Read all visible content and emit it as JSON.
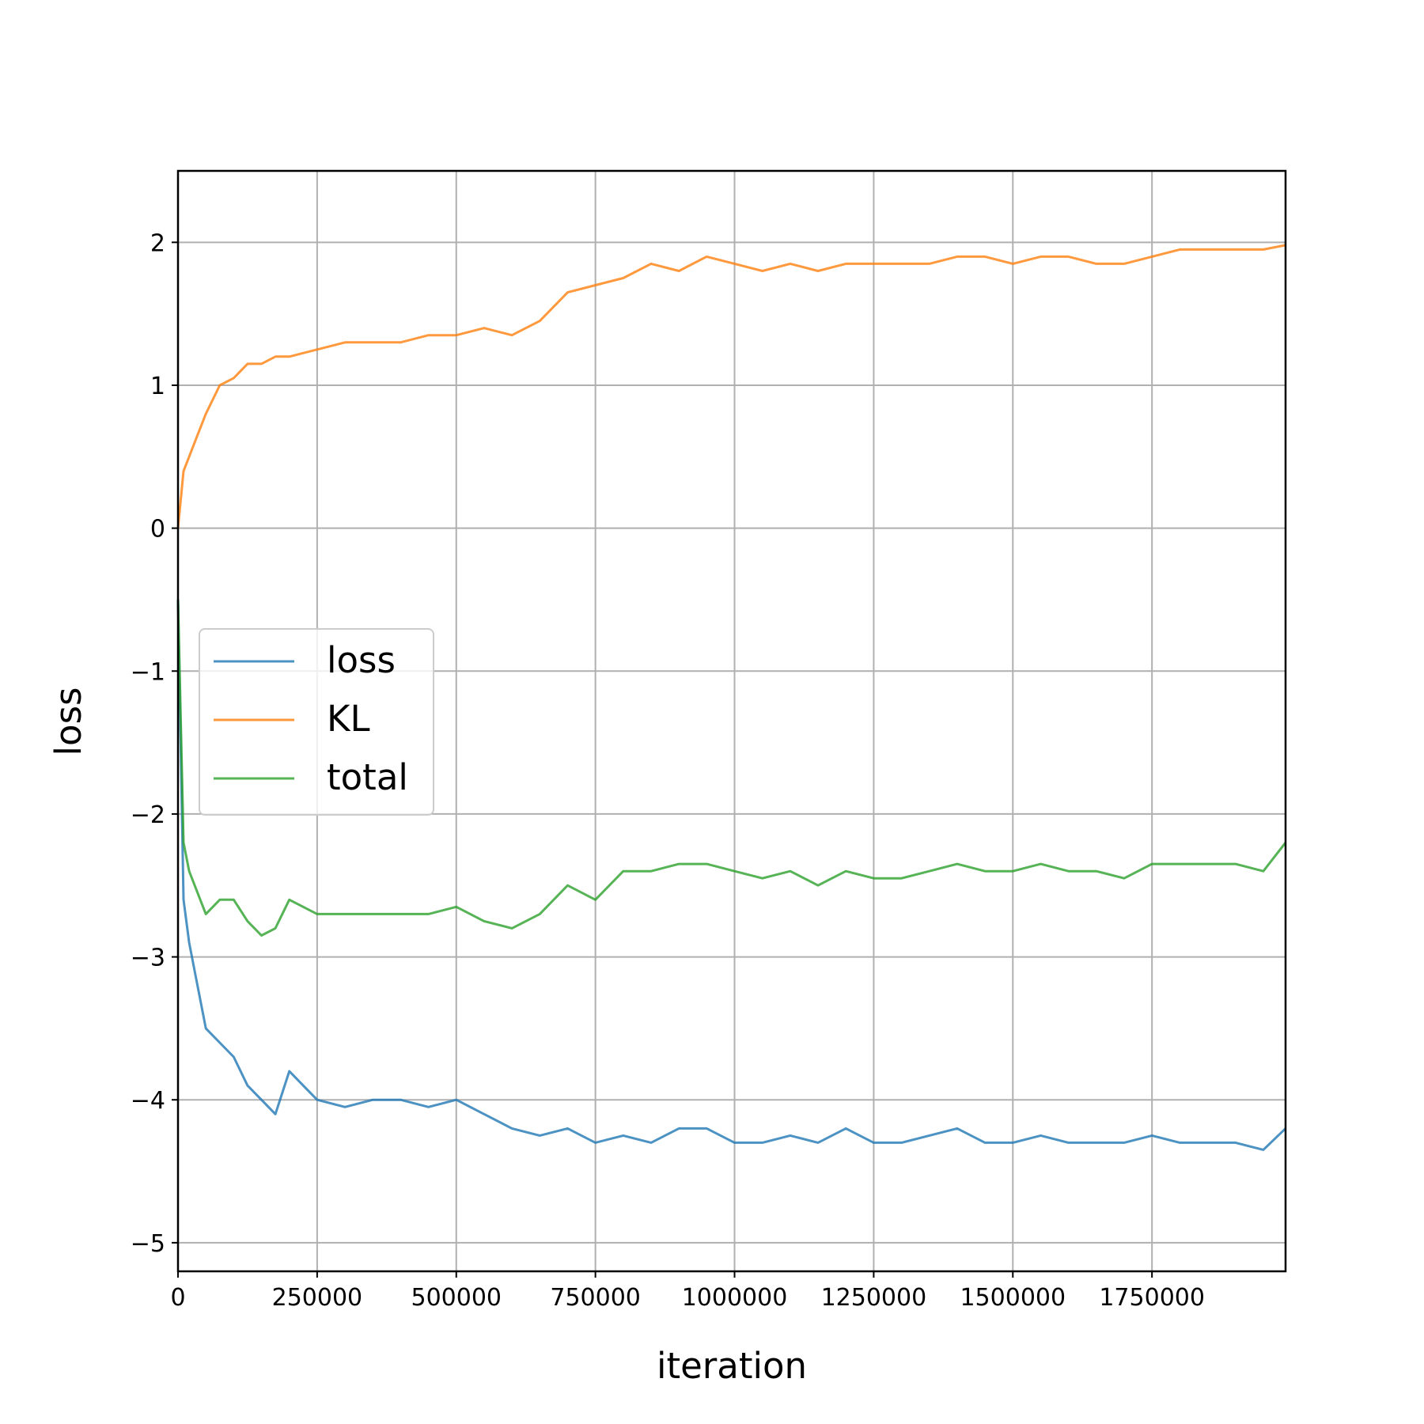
{
  "chart_data": {
    "type": "line",
    "title": "",
    "xlabel": "iteration",
    "ylabel": "loss",
    "xlim": [
      0,
      1990000
    ],
    "ylim": [
      -5.2,
      2.5
    ],
    "xticks": [
      0,
      250000,
      500000,
      750000,
      1000000,
      1250000,
      1500000,
      1750000
    ],
    "xtick_labels": [
      "0",
      "250000",
      "500000",
      "750000",
      "1000000",
      "1250000",
      "1500000",
      "1750000"
    ],
    "yticks": [
      -5,
      -4,
      -3,
      -2,
      -1,
      0,
      1,
      2
    ],
    "ytick_labels": [
      "−5",
      "−4",
      "−3",
      "−2",
      "−1",
      "0",
      "1",
      "2"
    ],
    "grid": true,
    "legend_position": "center-left",
    "x": [
      0,
      10000,
      20000,
      30000,
      50000,
      75000,
      100000,
      125000,
      150000,
      175000,
      200000,
      250000,
      300000,
      350000,
      400000,
      450000,
      500000,
      550000,
      600000,
      650000,
      700000,
      750000,
      800000,
      850000,
      900000,
      950000,
      1000000,
      1050000,
      1100000,
      1150000,
      1200000,
      1250000,
      1300000,
      1350000,
      1400000,
      1450000,
      1500000,
      1550000,
      1600000,
      1650000,
      1700000,
      1750000,
      1800000,
      1850000,
      1900000,
      1950000,
      1990000
    ],
    "series": [
      {
        "name": "loss",
        "color": "#1f77b4",
        "values": [
          -0.5,
          -2.6,
          -2.9,
          -3.1,
          -3.5,
          -3.6,
          -3.7,
          -3.9,
          -4.0,
          -4.1,
          -3.8,
          -4.0,
          -4.05,
          -4.0,
          -4.0,
          -4.05,
          -4.0,
          -4.1,
          -4.2,
          -4.25,
          -4.2,
          -4.3,
          -4.25,
          -4.3,
          -4.2,
          -4.2,
          -4.3,
          -4.3,
          -4.25,
          -4.3,
          -4.2,
          -4.3,
          -4.3,
          -4.25,
          -4.2,
          -4.3,
          -4.3,
          -4.25,
          -4.3,
          -4.3,
          -4.3,
          -4.25,
          -4.3,
          -4.3,
          -4.3,
          -4.35,
          -4.2
        ]
      },
      {
        "name": "KL",
        "color": "#ff7f0e",
        "values": [
          0.0,
          0.4,
          0.5,
          0.6,
          0.8,
          1.0,
          1.05,
          1.15,
          1.15,
          1.2,
          1.2,
          1.25,
          1.3,
          1.3,
          1.3,
          1.35,
          1.35,
          1.4,
          1.35,
          1.45,
          1.65,
          1.7,
          1.75,
          1.85,
          1.8,
          1.9,
          1.85,
          1.8,
          1.85,
          1.8,
          1.85,
          1.85,
          1.85,
          1.85,
          1.9,
          1.9,
          1.85,
          1.9,
          1.9,
          1.85,
          1.85,
          1.9,
          1.95,
          1.95,
          1.95,
          1.95,
          1.98
        ]
      },
      {
        "name": "total",
        "color": "#2ca02c",
        "values": [
          -0.5,
          -2.2,
          -2.4,
          -2.5,
          -2.7,
          -2.6,
          -2.6,
          -2.75,
          -2.85,
          -2.8,
          -2.6,
          -2.7,
          -2.7,
          -2.7,
          -2.7,
          -2.7,
          -2.65,
          -2.75,
          -2.8,
          -2.7,
          -2.5,
          -2.6,
          -2.4,
          -2.4,
          -2.35,
          -2.35,
          -2.4,
          -2.45,
          -2.4,
          -2.5,
          -2.4,
          -2.45,
          -2.45,
          -2.4,
          -2.35,
          -2.4,
          -2.4,
          -2.35,
          -2.4,
          -2.4,
          -2.45,
          -2.35,
          -2.35,
          -2.35,
          -2.35,
          -2.4,
          -2.2
        ]
      }
    ]
  }
}
